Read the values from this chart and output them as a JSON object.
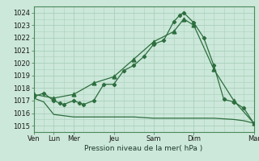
{
  "background_color": "#cce8da",
  "grid_color": "#aacfbc",
  "line_color": "#2d6e3e",
  "xlabel": "Pression niveau de la mer( hPa )",
  "ylim": [
    1014.5,
    1024.5
  ],
  "yticks": [
    1015,
    1016,
    1017,
    1018,
    1019,
    1020,
    1021,
    1022,
    1023,
    1024
  ],
  "series1_x": [
    0,
    0.5,
    1,
    1.3,
    1.5,
    2,
    2.3,
    2.5,
    3,
    3.5,
    4,
    4.5,
    5,
    5.5,
    6,
    6.5,
    7,
    7.3,
    7.5,
    8,
    8.5,
    9,
    9.5,
    10,
    10.5,
    11
  ],
  "series1_y": [
    1017.3,
    1017.6,
    1017.0,
    1016.8,
    1016.7,
    1017.0,
    1016.8,
    1016.7,
    1017.0,
    1018.3,
    1018.3,
    1019.4,
    1019.8,
    1020.5,
    1021.5,
    1021.8,
    1023.3,
    1023.8,
    1024.0,
    1023.2,
    1022.0,
    1019.8,
    1017.1,
    1016.9,
    1016.4,
    1015.2
  ],
  "series2_x": [
    0,
    1,
    2,
    3,
    4,
    5,
    6,
    7,
    7.5,
    8,
    9,
    10,
    11
  ],
  "series2_y": [
    1017.5,
    1017.2,
    1017.5,
    1018.4,
    1018.9,
    1020.3,
    1021.7,
    1022.5,
    1023.5,
    1023.0,
    1019.5,
    1017.0,
    1015.2
  ],
  "series3_x": [
    0,
    0.5,
    1,
    2,
    3,
    4,
    5,
    6,
    7,
    8,
    9,
    10,
    10.5,
    11
  ],
  "series3_y": [
    1017.2,
    1016.9,
    1015.9,
    1015.7,
    1015.7,
    1015.7,
    1015.7,
    1015.6,
    1015.6,
    1015.6,
    1015.6,
    1015.5,
    1015.4,
    1015.2
  ],
  "xtick_major_positions": [
    0,
    1,
    2,
    4,
    6,
    8,
    11
  ],
  "xtick_major_labels": [
    "Ven",
    "Lun",
    "Mer",
    "Jeu",
    "Sam",
    "Dim",
    "Mar"
  ],
  "figsize": [
    3.2,
    2.0
  ],
  "dpi": 100
}
